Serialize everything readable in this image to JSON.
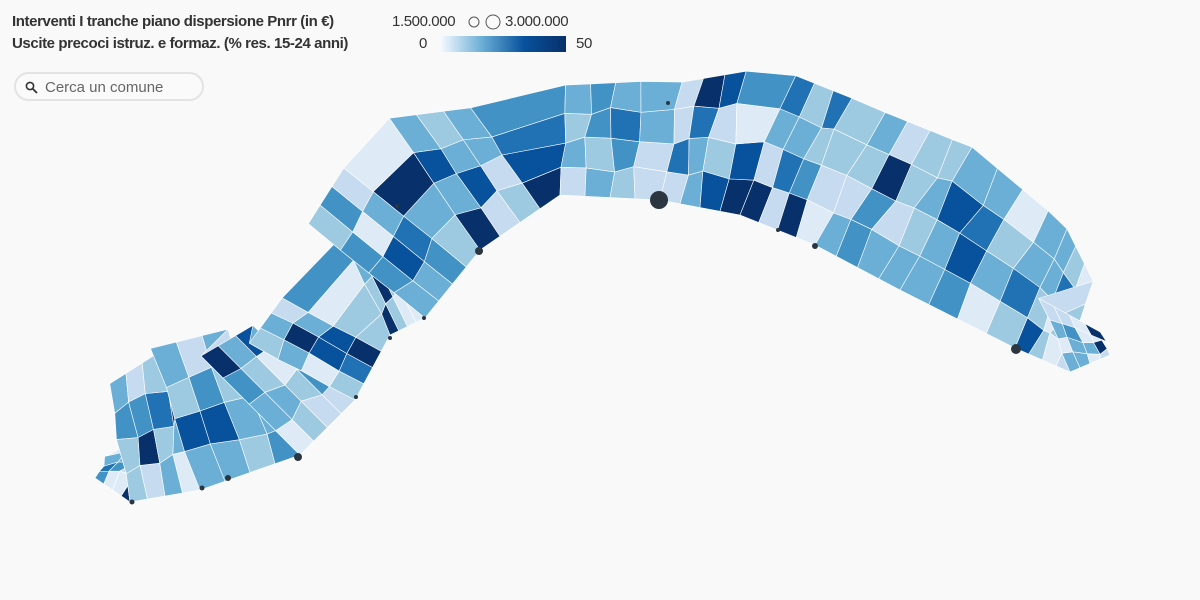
{
  "legend": {
    "size_title": "Interventi I tranche piano dispersione Pnrr (in €)",
    "size_min_label": "1.500.000",
    "size_max_label": "3.000.000",
    "color_title": "Uscite precoci istruz. e formaz. (% res. 15-24 anni)",
    "color_min": 0,
    "color_max": 50
  },
  "search": {
    "placeholder": "Cerca un comune"
  }
}
